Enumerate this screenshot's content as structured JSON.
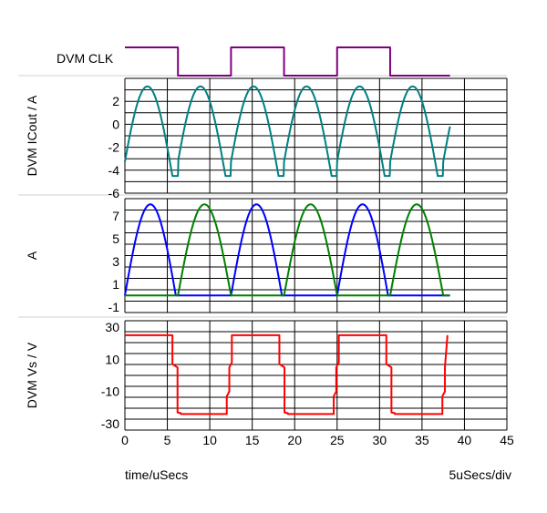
{
  "footer": {
    "xlabel": "time/uSecs",
    "scale": "5uSecs/div"
  },
  "chart_data": [
    {
      "type": "line",
      "panel": "clk",
      "ylabel": "DVM CLK",
      "ylim": [
        0,
        1
      ],
      "grid": false,
      "series": [
        {
          "color": "#800080",
          "x": [
            0,
            6.25,
            6.25,
            12.5,
            12.5,
            18.75,
            18.75,
            25,
            25,
            31.25,
            31.25,
            38.3
          ],
          "y": [
            1,
            1,
            0,
            0,
            1,
            1,
            0,
            0,
            1,
            1,
            0,
            0
          ]
        }
      ]
    },
    {
      "type": "line",
      "panel": "icout",
      "ylabel": "DVM ICout / A",
      "ylim": [
        -6,
        4
      ],
      "yticks": [
        2,
        0,
        -2,
        -4,
        -6
      ],
      "xlim": [
        0,
        45
      ],
      "grid": true,
      "series": [
        {
          "color": "#008080",
          "shape": "icout",
          "peak": 3.3,
          "trough": -4.5,
          "period": 6.25,
          "peak_at": 3.3,
          "x_end": 38.3
        }
      ]
    },
    {
      "type": "line",
      "panel": "a",
      "ylabel": "A",
      "ylim": [
        -1.5,
        8.5
      ],
      "yticks": [
        7,
        5,
        3,
        1,
        -1
      ],
      "xlim": [
        0,
        45
      ],
      "grid": true,
      "series": [
        {
          "color": "#0000ff",
          "shape": "halfsine",
          "peak": 8,
          "humps": [
            [
              0,
              6
            ],
            [
              12.5,
              18.5
            ],
            [
              25,
              31
            ]
          ],
          "x_end": 38.3
        },
        {
          "color": "#008000",
          "shape": "halfsine",
          "peak": 8,
          "humps": [
            [
              6.25,
              12.5
            ],
            [
              18.75,
              25
            ],
            [
              31.25,
              37.5
            ]
          ],
          "x_end": 38.3
        }
      ]
    },
    {
      "type": "line",
      "panel": "vs",
      "ylabel": "DVM Vs / V",
      "ylim": [
        -34,
        34
      ],
      "yticks": [
        30,
        10,
        -10,
        -30
      ],
      "xlim": [
        0,
        45
      ],
      "xticks": [
        0,
        5,
        10,
        15,
        20,
        25,
        30,
        35,
        40,
        45
      ],
      "grid": true,
      "series": [
        {
          "color": "#ff0000",
          "x": [
            0,
            5.6,
            5.6,
            6.2,
            6.2,
            6.6,
            6.6,
            12.0,
            12.0,
            12.3,
            12.3,
            12.6,
            12.6,
            18.2,
            18.2,
            18.8,
            18.8,
            19.2,
            19.2,
            24.6,
            24.6,
            24.9,
            24.9,
            25.2,
            25.2,
            30.8,
            30.8,
            31.4,
            31.4,
            31.8,
            31.8,
            37.4,
            37.4,
            37.7,
            37.7,
            38.0
          ],
          "y": [
            25,
            25,
            7,
            5,
            -23,
            -23.5,
            -24,
            -24,
            -13,
            -10,
            5,
            8,
            25,
            25,
            7,
            5,
            -23,
            -23.5,
            -24,
            -24,
            -13,
            -10,
            5,
            8,
            25,
            25,
            7,
            5,
            -23,
            -23.5,
            -24,
            -24,
            -13,
            -10,
            5,
            25
          ]
        }
      ]
    }
  ]
}
